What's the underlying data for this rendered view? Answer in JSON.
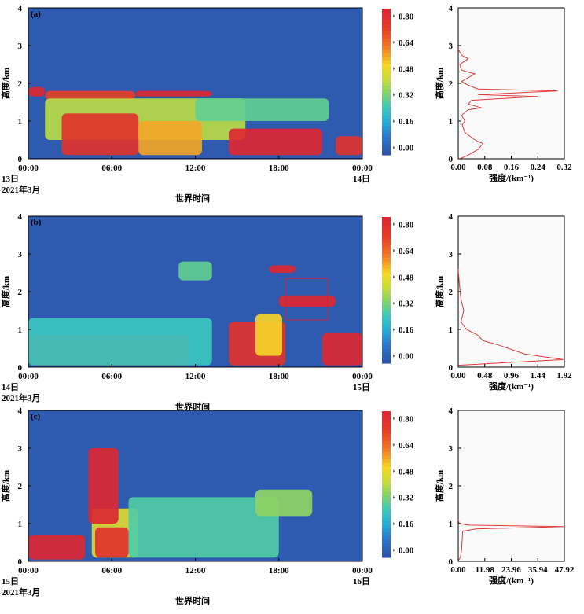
{
  "chart_data": [
    {
      "type": "heatmap",
      "panel_label": "(a)",
      "ylabel": "高度/km",
      "xlabel": "世界时间",
      "x_ticks": [
        "00:00",
        "06:00",
        "12:00",
        "18:00",
        "00:00"
      ],
      "day_labels": [
        "13日",
        "14日"
      ],
      "year_month": "2021年3月",
      "y_ticks": [
        "0",
        "1",
        "2",
        "3",
        "4"
      ],
      "ylim": [
        0,
        4
      ],
      "colorbar_ticks": [
        "0.00",
        "0.16",
        "0.32",
        "0.48",
        "0.64",
        "0.80"
      ],
      "colorbar_range": [
        0,
        0.8
      ],
      "profile": {
        "type": "line",
        "xlabel": "强度/(km⁻¹)",
        "ylabel": "高度/km",
        "x_ticks": [
          "0.00",
          "0.08",
          "0.16",
          "0.24",
          "0.32"
        ],
        "xlim": [
          0,
          0.32
        ],
        "y_ticks": [
          "0",
          "1",
          "2",
          "3",
          "4"
        ],
        "ylim": [
          0,
          4
        ],
        "points": [
          [
            0.005,
            0.0
          ],
          [
            0.03,
            0.1
          ],
          [
            0.06,
            0.25
          ],
          [
            0.075,
            0.4
          ],
          [
            0.05,
            0.5
          ],
          [
            0.02,
            0.7
          ],
          [
            0.012,
            0.9
          ],
          [
            0.02,
            1.0
          ],
          [
            0.01,
            1.15
          ],
          [
            0.03,
            1.3
          ],
          [
            0.07,
            1.35
          ],
          [
            0.03,
            1.45
          ],
          [
            0.04,
            1.55
          ],
          [
            0.24,
            1.65
          ],
          [
            0.06,
            1.7
          ],
          [
            0.3,
            1.8
          ],
          [
            0.06,
            1.85
          ],
          [
            0.03,
            1.95
          ],
          [
            0.01,
            2.05
          ],
          [
            0.05,
            2.25
          ],
          [
            0.01,
            2.35
          ],
          [
            0.005,
            2.5
          ],
          [
            0.03,
            2.65
          ],
          [
            0.01,
            2.75
          ],
          [
            0.0,
            2.9
          ]
        ]
      },
      "regions": [
        {
          "x0": 0,
          "x1": 0.05,
          "y0": 1.65,
          "y1": 1.9,
          "v": 0.8
        },
        {
          "x0": 0.05,
          "x1": 0.32,
          "y0": 1.55,
          "y1": 1.8,
          "v": 0.7
        },
        {
          "x0": 0.32,
          "x1": 0.55,
          "y0": 1.65,
          "y1": 1.8,
          "v": 0.8
        },
        {
          "x0": 0.05,
          "x1": 0.65,
          "y0": 0.5,
          "y1": 1.6,
          "v": 0.4
        },
        {
          "x0": 0.1,
          "x1": 0.33,
          "y0": 0.1,
          "y1": 1.2,
          "v": 0.75
        },
        {
          "x0": 0.33,
          "x1": 0.52,
          "y0": 0.1,
          "y1": 1.0,
          "v": 0.55
        },
        {
          "x0": 0.6,
          "x1": 0.88,
          "y0": 0.1,
          "y1": 0.8,
          "v": 0.8
        },
        {
          "x0": 0.5,
          "x1": 0.9,
          "y0": 1.0,
          "y1": 1.6,
          "v": 0.3
        },
        {
          "x0": 0.92,
          "x1": 1.0,
          "y0": 0.1,
          "y1": 0.6,
          "v": 0.75
        }
      ]
    },
    {
      "type": "heatmap",
      "panel_label": "(b)",
      "ylabel": "高度/km",
      "xlabel": "世界时间",
      "x_ticks": [
        "00:00",
        "06:00",
        "12:00",
        "18:00",
        "00:00"
      ],
      "day_labels": [
        "14日",
        "15日"
      ],
      "year_month": "2021年3月",
      "y_ticks": [
        "0",
        "1",
        "2",
        "3",
        "4"
      ],
      "ylim": [
        0,
        4
      ],
      "colorbar_ticks": [
        "0.00",
        "0.16",
        "0.32",
        "0.48",
        "0.64",
        "0.80"
      ],
      "colorbar_range": [
        0,
        0.8
      ],
      "profile": {
        "type": "line",
        "xlabel": "强度/(km⁻¹)",
        "ylabel": "高度/km",
        "x_ticks": [
          "0.00",
          "0.48",
          "0.96",
          "1.44",
          "1.92"
        ],
        "xlim": [
          0,
          1.92
        ],
        "y_ticks": [
          "0",
          "1",
          "2",
          "3",
          "4"
        ],
        "ylim": [
          0,
          4
        ],
        "points": [
          [
            0.0,
            0.05
          ],
          [
            1.9,
            0.2
          ],
          [
            1.2,
            0.35
          ],
          [
            0.7,
            0.6
          ],
          [
            0.45,
            0.7
          ],
          [
            0.35,
            0.85
          ],
          [
            0.15,
            1.0
          ],
          [
            0.05,
            1.2
          ],
          [
            0.1,
            1.5
          ],
          [
            0.05,
            1.8
          ],
          [
            0.02,
            2.2
          ],
          [
            0.0,
            2.6
          ]
        ]
      },
      "selection_box": {
        "t0": 18.5,
        "t1": 21.5,
        "h0": 1.25,
        "h1": 2.35
      },
      "regions": [
        {
          "x0": 0,
          "x1": 0.48,
          "y0": 0.05,
          "y1": 0.85,
          "v": 0.8
        },
        {
          "x0": 0.0,
          "x1": 0.55,
          "y0": 0.05,
          "y1": 1.3,
          "v": 0.25
        },
        {
          "x0": 0.6,
          "x1": 0.77,
          "y0": 0.05,
          "y1": 1.2,
          "v": 0.75
        },
        {
          "x0": 0.68,
          "x1": 0.76,
          "y0": 0.3,
          "y1": 1.4,
          "v": 0.5
        },
        {
          "x0": 0.88,
          "x1": 1.0,
          "y0": 0.05,
          "y1": 0.9,
          "v": 0.8
        },
        {
          "x0": 0.45,
          "x1": 0.55,
          "y0": 2.3,
          "y1": 2.8,
          "v": 0.3
        },
        {
          "x0": 0.72,
          "x1": 0.8,
          "y0": 2.5,
          "y1": 2.7,
          "v": 0.8
        },
        {
          "x0": 0.75,
          "x1": 0.92,
          "y0": 1.6,
          "y1": 1.9,
          "v": 0.8
        }
      ]
    },
    {
      "type": "heatmap",
      "panel_label": "(c)",
      "ylabel": "高度/km",
      "xlabel": "世界时间",
      "x_ticks": [
        "00:00",
        "06:00",
        "12:00",
        "18:00",
        "00:00"
      ],
      "day_labels": [
        "15日",
        "16日"
      ],
      "year_month": "2021年3月",
      "y_ticks": [
        "0",
        "1",
        "2",
        "3",
        "4"
      ],
      "ylim": [
        0,
        4
      ],
      "colorbar_ticks": [
        "0.00",
        "0.16",
        "0.32",
        "0.48",
        "0.64",
        "0.80"
      ],
      "colorbar_range": [
        0,
        0.8
      ],
      "profile": {
        "type": "line",
        "xlabel": "强度/(km⁻¹)",
        "ylabel": "高度/km",
        "x_ticks": [
          "0.00",
          "11.98",
          "23.96",
          "35.94",
          "47.92"
        ],
        "xlim": [
          0,
          47.92
        ],
        "y_ticks": [
          "0",
          "1",
          "2",
          "3",
          "4"
        ],
        "ylim": [
          0,
          4
        ],
        "points": [
          [
            0.0,
            0.02
          ],
          [
            1.0,
            0.1
          ],
          [
            1.5,
            0.3
          ],
          [
            1.8,
            0.6
          ],
          [
            2.0,
            0.8
          ],
          [
            8.0,
            0.86
          ],
          [
            47.9,
            0.92
          ],
          [
            5.0,
            0.96
          ],
          [
            0.5,
            1.0
          ],
          [
            0.0,
            1.1
          ]
        ]
      },
      "regions": [
        {
          "x0": 0,
          "x1": 0.17,
          "y0": 0.05,
          "y1": 0.7,
          "v": 0.8
        },
        {
          "x0": 0.19,
          "x1": 0.33,
          "y0": 0.1,
          "y1": 1.4,
          "v": 0.45
        },
        {
          "x0": 0.2,
          "x1": 0.3,
          "y0": 0.1,
          "y1": 0.9,
          "v": 0.75
        },
        {
          "x0": 0.3,
          "x1": 0.75,
          "y0": 0.1,
          "y1": 1.7,
          "v": 0.28
        },
        {
          "x0": 0.68,
          "x1": 0.85,
          "y0": 1.2,
          "y1": 1.9,
          "v": 0.35
        },
        {
          "x0": 0.18,
          "x1": 0.27,
          "y0": 1.0,
          "y1": 3.0,
          "v": 0.8
        }
      ]
    }
  ]
}
